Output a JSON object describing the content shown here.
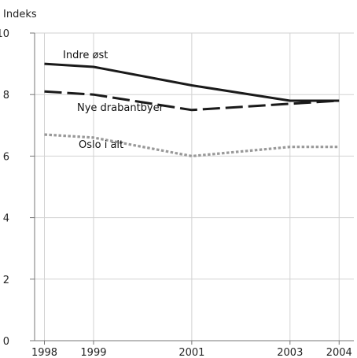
{
  "chart_data": {
    "type": "line",
    "ylabel": "Indeks",
    "x": [
      1998,
      1999,
      2001,
      2003,
      2004
    ],
    "xlim": [
      1997.8,
      2004.3
    ],
    "ylim": [
      0,
      10
    ],
    "yticks": [
      0,
      2,
      4,
      6,
      8,
      10
    ],
    "grid": true,
    "legend": "inline labels",
    "series": [
      {
        "name": "Indre øst",
        "values": [
          9.0,
          8.9,
          8.3,
          7.8,
          7.8
        ],
        "style": "solid",
        "color": "#1a1a1a"
      },
      {
        "name": "Nye drabantbyer",
        "values": [
          8.1,
          8.0,
          7.5,
          7.7,
          7.8
        ],
        "style": "dashed",
        "color": "#1a1a1a"
      },
      {
        "name": "Oslo i alt",
        "values": [
          6.7,
          6.6,
          6.0,
          6.3,
          6.3
        ],
        "style": "dotted",
        "color": "#999999"
      }
    ]
  }
}
